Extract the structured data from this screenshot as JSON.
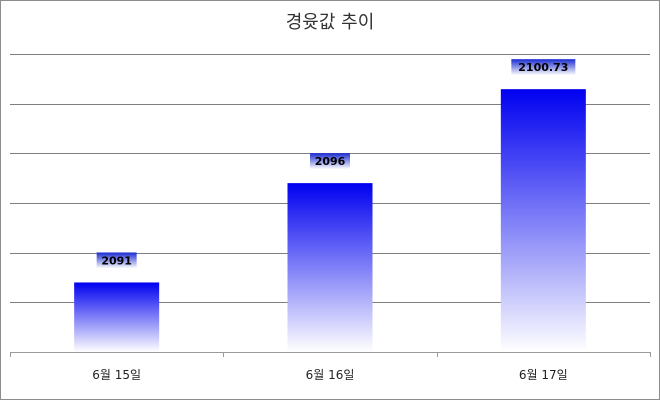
{
  "chart_data": {
    "type": "bar",
    "title": "경윳값 추이",
    "categories": [
      "6월 15일",
      "6월 16일",
      "6월 17일"
    ],
    "values": [
      2091,
      2096,
      2100.73
    ],
    "data_labels": [
      "2091",
      "2096",
      "2100.73"
    ],
    "ylim": [
      2087.5,
      2102.5
    ],
    "grid": true,
    "legend": "none",
    "xlabel": "",
    "ylabel": "",
    "colors": {
      "bar_top": "#0000f0",
      "bar_bottom": "#ffffff",
      "grid": "#7f7f7f",
      "axis": "#9a9a9a",
      "label_box": "#2b3bd6"
    }
  }
}
